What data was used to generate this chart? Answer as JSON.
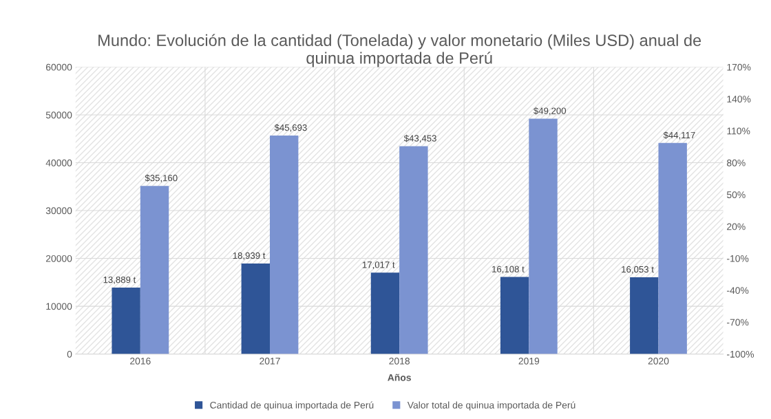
{
  "chart_data": {
    "type": "bar",
    "title": "Mundo: Evolución de la cantidad (Tonelada) y valor monetario (Miles USD) anual de\nquinua importada de Perú",
    "xlabel": "Años",
    "categories": [
      "2016",
      "2017",
      "2018",
      "2019",
      "2020"
    ],
    "series": [
      {
        "name": "Cantidad de quinua importada de Perú",
        "color": "#2f5597",
        "values": [
          13889,
          18939,
          17017,
          16108,
          16053
        ],
        "value_labels": [
          "13,889 t",
          "18,939 t",
          "17,017 t",
          "16,108 t",
          "16,053 t"
        ]
      },
      {
        "name": "Valor total de quinua importada de Perú",
        "color": "#7b93d1",
        "values": [
          35160,
          45693,
          43453,
          49200,
          44117
        ],
        "value_labels": [
          "$35,160",
          "$45,693",
          "$43,453",
          "$49,200",
          "$44,117"
        ]
      }
    ],
    "ylim": [
      0,
      60000
    ],
    "yticks": [
      0,
      10000,
      20000,
      30000,
      40000,
      50000,
      60000
    ],
    "y2lim": [
      -100,
      170
    ],
    "y2ticks": [
      {
        "value": -100,
        "label": "-100%"
      },
      {
        "value": -70,
        "label": "-70%"
      },
      {
        "value": -40,
        "label": "-40%"
      },
      {
        "value": -10,
        "label": "-10%"
      },
      {
        "value": 20,
        "label": "20%"
      },
      {
        "value": 50,
        "label": "50%"
      },
      {
        "value": 80,
        "label": "80%"
      },
      {
        "value": 110,
        "label": "110%"
      },
      {
        "value": 140,
        "label": "140%"
      },
      {
        "value": 170,
        "label": "170%"
      }
    ],
    "grid": true,
    "legend": "bottom"
  }
}
